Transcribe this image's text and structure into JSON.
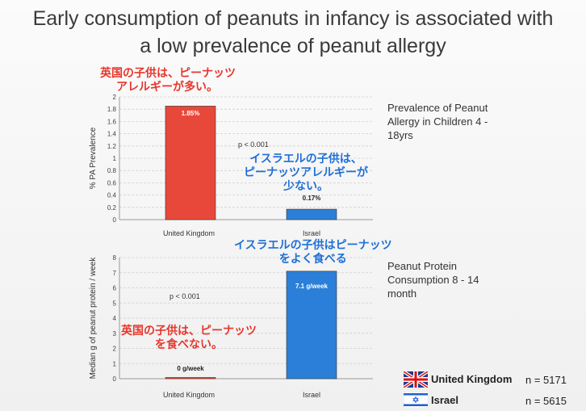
{
  "title_line1": "Early consumption of peanuts in infancy is associated with",
  "title_line2": "a low prevalence of peanut allergy",
  "chart_data": [
    {
      "type": "bar",
      "categories": [
        "United Kingdom",
        "Israel"
      ],
      "values": [
        1.85,
        0.17
      ],
      "value_labels": [
        "1.85%",
        "0.17%"
      ],
      "ylabel": "% PA Prevalence",
      "ylim": [
        0,
        2
      ],
      "yticks": [
        "0",
        "0.2",
        "0.4",
        "0.6",
        "0.8",
        "1",
        "1.2",
        "1.4",
        "1.6",
        "1.8",
        "2"
      ],
      "annotation": "p < 0.001",
      "side_note": [
        "Prevalence of Peanut",
        "Allergy in Children 4 -",
        "18yrs"
      ],
      "colors": [
        "#e8483a",
        "#2c7fd8"
      ]
    },
    {
      "type": "bar",
      "categories": [
        "United Kingdom",
        "Israel"
      ],
      "values": [
        0,
        7.1
      ],
      "value_labels": [
        "0 g/week",
        "7.1 g/week"
      ],
      "ylabel": "Median g of peanut protein / week",
      "ylim": [
        0,
        8
      ],
      "yticks": [
        "0",
        "1",
        "2",
        "3",
        "4",
        "5",
        "6",
        "7",
        "8"
      ],
      "annotation": "p < 0.001",
      "side_note": [
        "Peanut Protein",
        "Consumption 8 - 14",
        "month"
      ],
      "colors": [
        "#e8483a",
        "#2c7fd8"
      ]
    }
  ],
  "jp_notes": {
    "uk_top": [
      "英国の子供は、ピーナッツ",
      "アレルギーが多い。"
    ],
    "israel_top": [
      "イスラエルの子供は、",
      "ピーナッツアレルギーが",
      "少ない。"
    ],
    "israel_bottom": [
      "イスラエルの子供はピーナッツ",
      "をよく食べる"
    ],
    "uk_bottom": [
      "英国の子供は、ピーナッツ",
      "を食べない。"
    ]
  },
  "legend": [
    {
      "label": "United Kingdom",
      "n": "n = 5171",
      "icon": "uk-flag-icon"
    },
    {
      "label": "Israel",
      "n": "n = 5615",
      "icon": "israel-flag-icon"
    }
  ]
}
